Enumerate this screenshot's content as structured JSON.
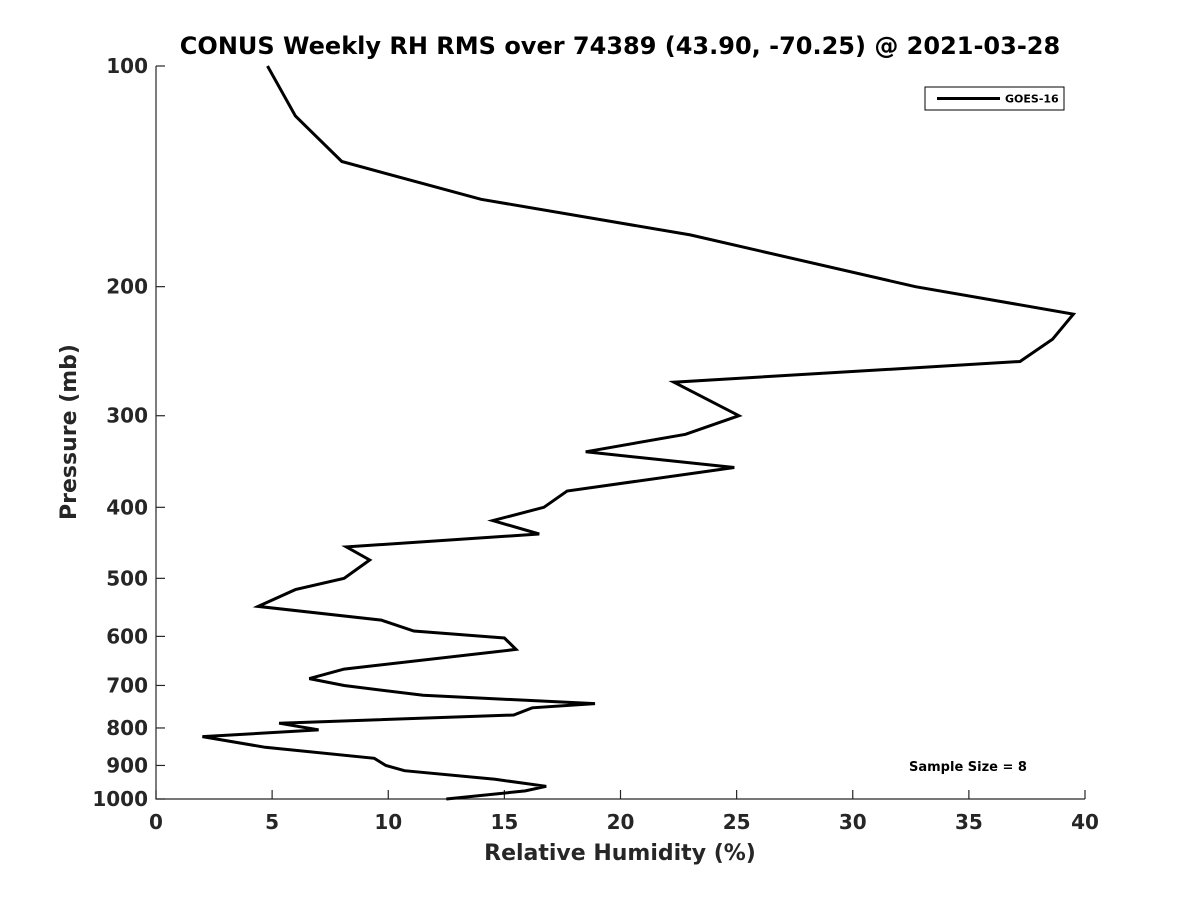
{
  "chart_data": {
    "type": "line",
    "title": "CONUS Weekly RH RMS over 74389 (43.90, -70.25) @ 2021-03-28",
    "xlabel": "Relative Humidity (%)",
    "ylabel": "Pressure (mb)",
    "xlim": [
      0,
      40
    ],
    "ylim": [
      100,
      1000
    ],
    "yscale": "log",
    "y_reversed": true,
    "grid": false,
    "x_ticks": [
      "0",
      "5",
      "10",
      "15",
      "20",
      "25",
      "30",
      "35",
      "40"
    ],
    "y_ticks": [
      "100",
      "200",
      "300",
      "400",
      "500",
      "600",
      "700",
      "800",
      "900",
      "1000"
    ],
    "legend": {
      "position": "top-right"
    },
    "annotation": "Sample Size = 8",
    "series": [
      {
        "name": "GOES-16",
        "color": "#000000",
        "x": [
          4.8,
          6.0,
          8.0,
          14.0,
          23.0,
          32.7,
          39.5,
          38.6,
          37.2,
          22.3,
          25.1,
          22.8,
          18.5,
          24.9,
          17.7,
          16.7,
          14.5,
          16.5,
          8.2,
          9.2,
          8.1,
          6.0,
          4.4,
          9.7,
          11.1,
          15.0,
          15.5,
          8.1,
          6.6,
          8.1,
          11.5,
          18.9,
          16.2,
          15.4,
          5.3,
          7.0,
          2.0,
          4.7,
          9.4,
          9.9,
          10.7,
          14.6,
          16.8,
          15.9,
          12.5
        ],
        "y": [
          100,
          117,
          135,
          152,
          170,
          200,
          218,
          236,
          253,
          270,
          300,
          318,
          336,
          353,
          380,
          400,
          417,
          435,
          453,
          472,
          500,
          518,
          546,
          570,
          590,
          603,
          625,
          665,
          685,
          700,
          722,
          741,
          751,
          768,
          788,
          805,
          822,
          850,
          880,
          900,
          915,
          940,
          961,
          975,
          1000
        ]
      }
    ]
  }
}
